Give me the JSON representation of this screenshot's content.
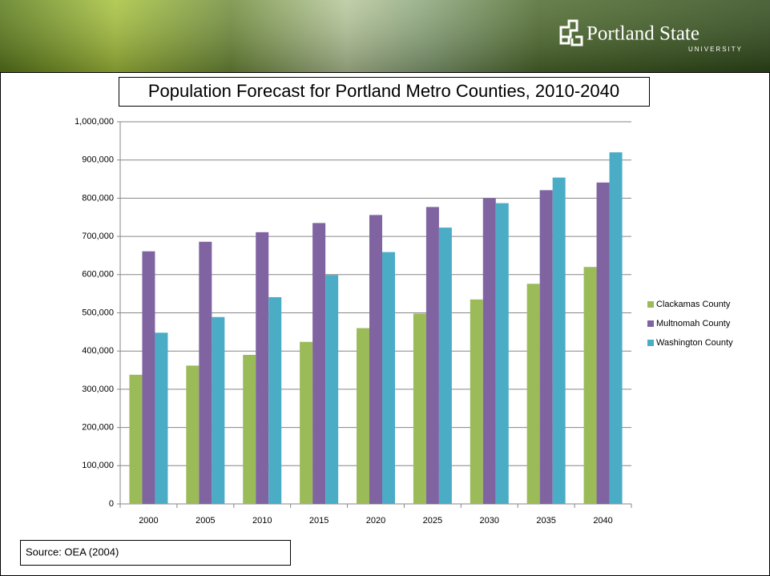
{
  "header": {
    "logo": "Portland State",
    "logo_sub": "UNIVERSITY"
  },
  "source": "Source: OEA (2004)",
  "chart_data": {
    "type": "bar",
    "title": "Population Forecast for Portland Metro Counties, 2010-2040",
    "categories": [
      "2000",
      "2005",
      "2010",
      "2015",
      "2020",
      "2025",
      "2030",
      "2035",
      "2040"
    ],
    "series": [
      {
        "name": "Clackamas County",
        "color": "#9bbb59",
        "values": [
          338000,
          362000,
          390000,
          424000,
          460000,
          498000,
          535000,
          576000,
          620000
        ]
      },
      {
        "name": "Multnomah County",
        "color": "#8064a2",
        "values": [
          661000,
          686000,
          711000,
          735000,
          756000,
          777000,
          800000,
          821000,
          841000
        ]
      },
      {
        "name": "Washington County",
        "color": "#4bacc6",
        "values": [
          448000,
          489000,
          541000,
          599000,
          659000,
          723000,
          787000,
          854000,
          920000
        ]
      }
    ],
    "ylim": [
      0,
      1000000
    ],
    "yticks": [
      0,
      {
        "value": 100000,
        "label": "100,000"
      },
      {
        "value": 200000,
        "label": "200,000"
      },
      {
        "value": 300000,
        "label": "300,000"
      },
      {
        "value": 400000,
        "label": "400,000"
      },
      {
        "value": 500000,
        "label": "500,000"
      },
      {
        "value": 600000,
        "label": "600,000"
      },
      {
        "value": 700000,
        "label": "700,000"
      },
      {
        "value": 800000,
        "label": "800,000"
      },
      {
        "value": 900000,
        "label": "900,000"
      },
      {
        "value": 1000000,
        "label": "1,000,000"
      }
    ],
    "grid": true,
    "legend": "right"
  }
}
